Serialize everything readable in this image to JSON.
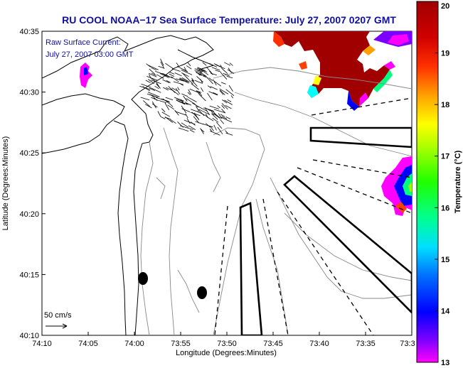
{
  "chart_data": {
    "type": "heatmap",
    "title": "RU COOL  NOAA−17  Sea Surface Temperature:  July 27, 2007 0207 GMT",
    "xlabel": "Longitude (Degrees:Minutes)",
    "ylabel": "Latitude (Degrees:Minutes)",
    "x_ticks": [
      "74:10",
      "74:05",
      "74:00",
      "73:55",
      "73:50",
      "73:45",
      "73:40",
      "73:35",
      "73:3"
    ],
    "y_ticks": [
      "40:10",
      "40:15",
      "40:20",
      "40:25",
      "40:30",
      "40:35"
    ],
    "xlim": [
      -74.1667,
      -73.5
    ],
    "ylim": [
      40.1667,
      40.5833
    ],
    "annotation_lines": [
      "Raw Surface Current:",
      "July 27, 2007 03:00 GMT"
    ],
    "scale_label": "50 cm/s",
    "colorbar": {
      "label": "Temperature (°C)",
      "min": 13,
      "max": 20,
      "ticks": [
        "13",
        "14",
        "15",
        "16",
        "17",
        "18",
        "19",
        "20"
      ],
      "colors": [
        "#ff00ff",
        "#7a00ff",
        "#0000ff",
        "#0080ff",
        "#00ffff",
        "#00ff80",
        "#00ff00",
        "#a0ff00",
        "#ffff00",
        "#ffa000",
        "#ff4000",
        "#e00000",
        "#a00000"
      ]
    },
    "sst_patches": [
      {
        "name": "north-warm-patch",
        "temp_c": 20
      },
      {
        "name": "east-warm-patch",
        "temp_c": 16
      },
      {
        "name": "northwest-cold-patch",
        "temp_c": 13
      }
    ]
  }
}
